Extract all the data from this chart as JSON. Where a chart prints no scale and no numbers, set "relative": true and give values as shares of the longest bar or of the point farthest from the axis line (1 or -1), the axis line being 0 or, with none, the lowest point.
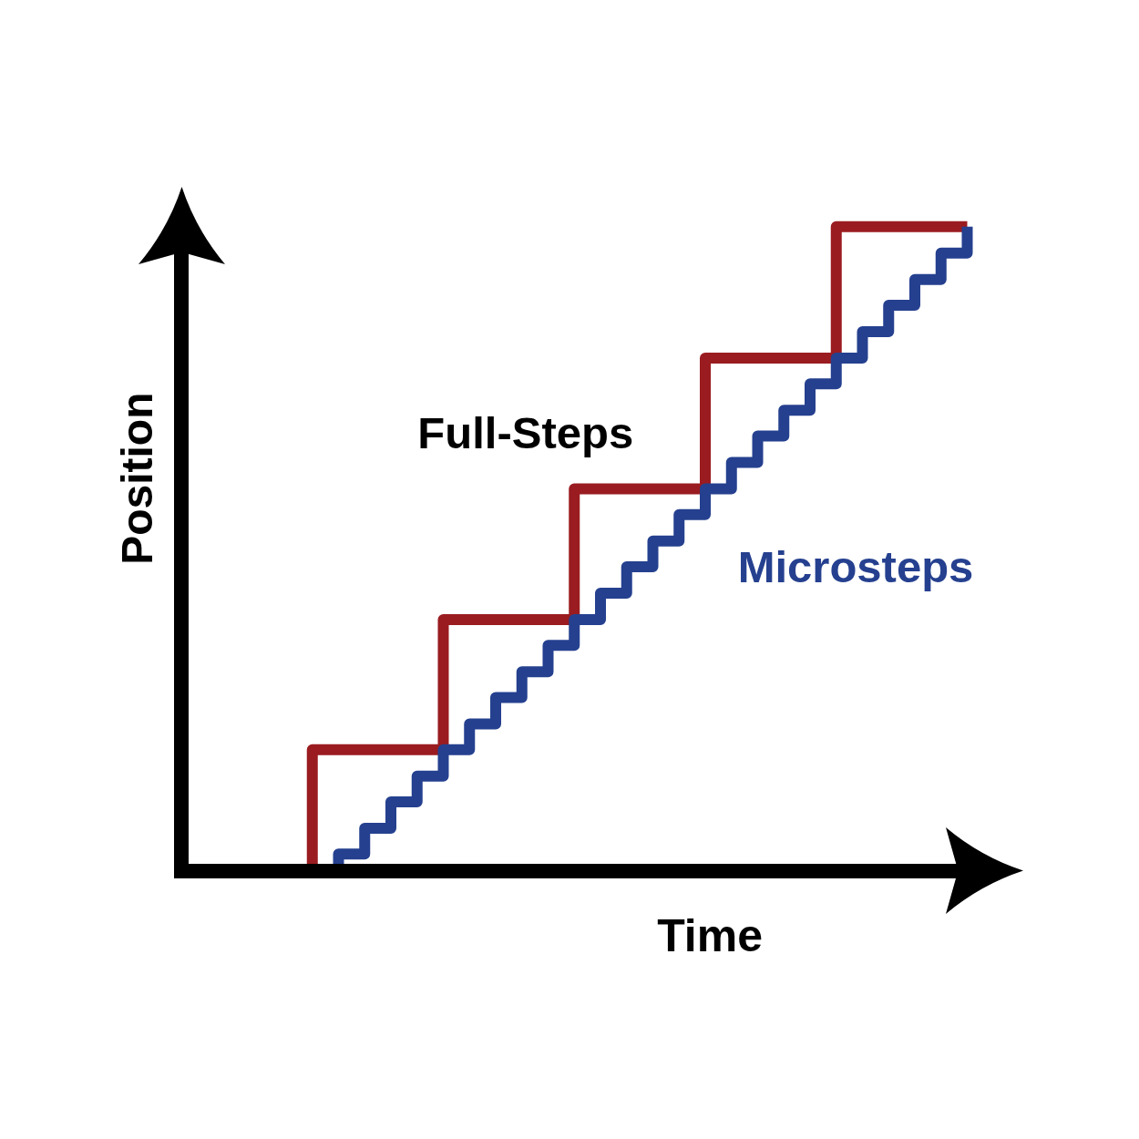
{
  "chart_data": {
    "type": "step",
    "relative": true,
    "xlabel": "Time",
    "ylabel": "Position",
    "categories": [
      null,
      null,
      null,
      null,
      null,
      null,
      null,
      null,
      null,
      null,
      null,
      null,
      null,
      null,
      null,
      null,
      null,
      null,
      null,
      null,
      null,
      null,
      null,
      null,
      null,
      null,
      null,
      null,
      null,
      null,
      null
    ],
    "series": [
      {
        "name": "Full-Steps",
        "color": "#9a1c20",
        "values": [
          null,
          null,
          null,
          null,
          0,
          0.188,
          0.188,
          0.188,
          0.188,
          0.188,
          0.39,
          0.39,
          0.39,
          0.39,
          0.39,
          0.593,
          0.593,
          0.593,
          0.593,
          0.593,
          0.796,
          0.796,
          0.796,
          0.796,
          0.796,
          1,
          1,
          1,
          1,
          1,
          1
        ]
      },
      {
        "name": "Microsteps",
        "color": "#25408f",
        "values": [
          null,
          null,
          null,
          null,
          null,
          0,
          0.026,
          0.066,
          0.107,
          0.147,
          0.188,
          0.228,
          0.269,
          0.309,
          0.35,
          0.39,
          0.431,
          0.472,
          0.512,
          0.553,
          0.593,
          0.634,
          0.675,
          0.715,
          0.756,
          0.796,
          0.837,
          0.878,
          0.918,
          0.959,
          1
        ]
      }
    ]
  }
}
